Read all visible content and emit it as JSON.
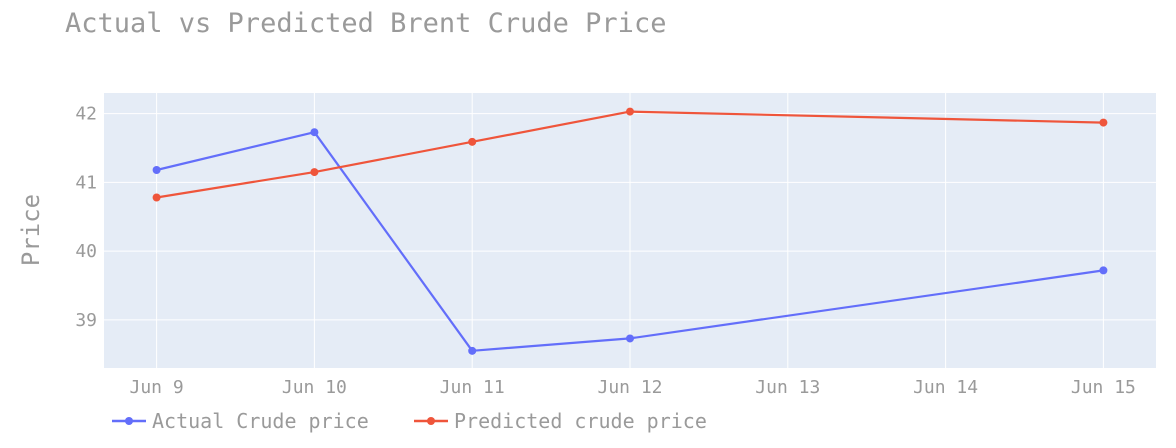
{
  "chart_data": {
    "type": "line",
    "title": "Actual vs Predicted Brent Crude Price",
    "xlabel": "",
    "ylabel": "Price",
    "x_ticks": [
      "Jun 9",
      "Jun 10",
      "Jun 11",
      "Jun 12",
      "Jun 13",
      "Jun 14",
      "Jun 15"
    ],
    "x_range": [
      "2020-06-08 16:00",
      "2020-06-15 08:00"
    ],
    "y_ticks": [
      39,
      40,
      41,
      42
    ],
    "ylim": [
      38.3,
      42.3
    ],
    "grid": true,
    "legend_position": "bottom",
    "series": [
      {
        "name": "Actual Crude price",
        "color": "#636efa",
        "x": [
          "2020-06-09",
          "2020-06-10",
          "2020-06-11",
          "2020-06-12",
          "2020-06-15"
        ],
        "values": [
          41.18,
          41.73,
          38.55,
          38.73,
          39.72
        ]
      },
      {
        "name": "Predicted crude price",
        "color": "#ef553b",
        "x": [
          "2020-06-09",
          "2020-06-10",
          "2020-06-11",
          "2020-06-12",
          "2020-06-15"
        ],
        "values": [
          40.78,
          41.15,
          41.59,
          42.03,
          41.87
        ]
      }
    ]
  }
}
